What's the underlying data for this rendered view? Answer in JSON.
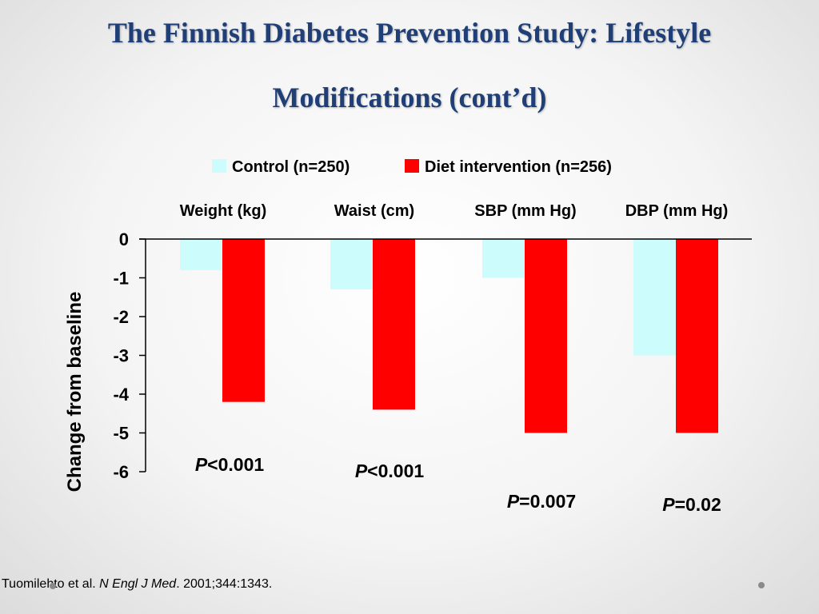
{
  "slide": {
    "title_line1": "The Finnish Diabetes Prevention Study: Lifestyle",
    "title_line2": "Modifications (cont’d)",
    "footer_authors": "Tuomilehto et al. ",
    "footer_journal": "N Engl J Med",
    "footer_rest": ". 2001;344:1343."
  },
  "chart_data": {
    "type": "bar",
    "categories": [
      "Weight (kg)",
      "Waist (cm)",
      "SBP (mm Hg)",
      "DBP (mm Hg)"
    ],
    "series": [
      {
        "name": "Control (n=250)",
        "color": "#ccfcfc",
        "values": [
          -0.8,
          -1.3,
          -1.0,
          -3.0
        ]
      },
      {
        "name": "Diet intervention (n=256)",
        "color": "#ff0000",
        "values": [
          -4.2,
          -4.4,
          -5.0,
          -5.0
        ]
      }
    ],
    "ylabel": "Change from baseline",
    "ylim": [
      -6,
      0
    ],
    "yticks": [
      "0",
      "-1",
      "-2",
      "-3",
      "-4",
      "-5",
      "-6"
    ],
    "legend_position": "top",
    "p_values": [
      {
        "prefix": "P",
        "text": "<0.001"
      },
      {
        "prefix": "P",
        "text": "<0.001"
      },
      {
        "prefix": "P",
        "text": "=0.007"
      },
      {
        "prefix": "P",
        "text": "=0.02"
      }
    ]
  }
}
